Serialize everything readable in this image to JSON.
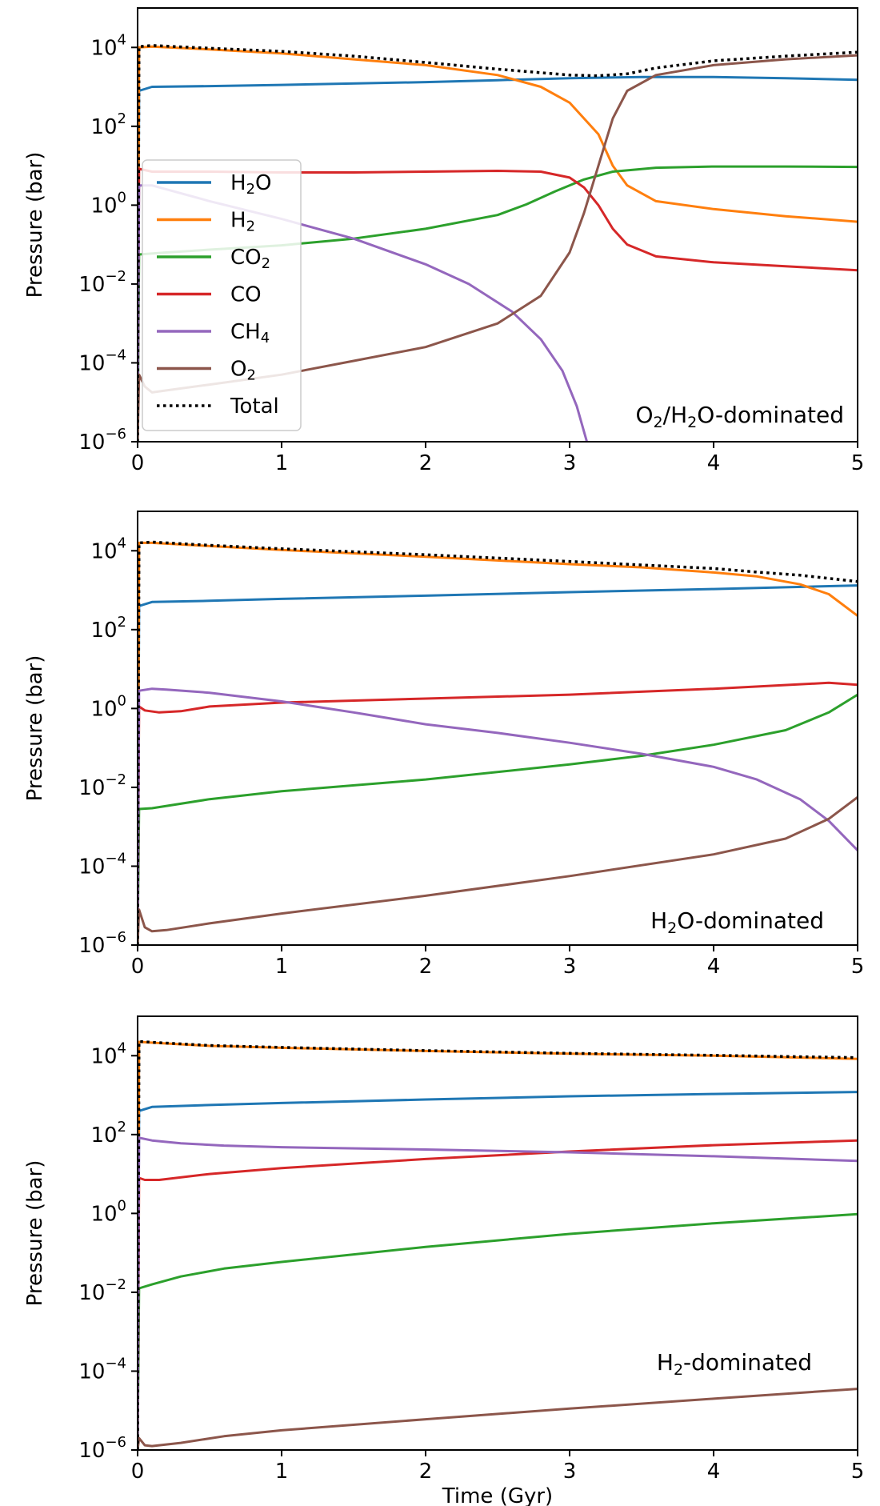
{
  "figure": {
    "xlabel": "Time (Gyr)"
  },
  "legend": {
    "entries": [
      {
        "key": "H2O",
        "label": "H",
        "sub": "2",
        "after": "O",
        "color": "#1f77b4",
        "dotted": false
      },
      {
        "key": "H2",
        "label": "H",
        "sub": "2",
        "after": "",
        "color": "#ff7f0e",
        "dotted": false
      },
      {
        "key": "CO2",
        "label": "CO",
        "sub": "2",
        "after": "",
        "color": "#2ca02c",
        "dotted": false
      },
      {
        "key": "CO",
        "label": "CO",
        "sub": "",
        "after": "",
        "color": "#d62728",
        "dotted": false
      },
      {
        "key": "CH4",
        "label": "CH",
        "sub": "4",
        "after": "",
        "color": "#9467bd",
        "dotted": false
      },
      {
        "key": "O2",
        "label": "O",
        "sub": "2",
        "after": "",
        "color": "#8c564b",
        "dotted": false
      },
      {
        "key": "Total",
        "label": "Total",
        "sub": "",
        "after": "",
        "color": "#000000",
        "dotted": true
      }
    ]
  },
  "chart_data": [
    {
      "type": "line",
      "panel_label": {
        "parts": [
          [
            "O",
            false
          ],
          [
            "2",
            true
          ],
          [
            "/H",
            false
          ],
          [
            "2",
            true
          ],
          [
            "O-dominated",
            false
          ]
        ]
      },
      "xlabel": "",
      "ylabel": "Pressure (bar)",
      "xlim": [
        0,
        5
      ],
      "ylim_log10": [
        -6,
        5
      ],
      "yscale": "log",
      "xticks": [
        0,
        1,
        2,
        3,
        4,
        5
      ],
      "yticks_log10": [
        -6,
        -4,
        -2,
        0,
        2,
        4
      ],
      "series": [
        {
          "name": "H2O",
          "color": "#1f77b4",
          "x": [
            0.01,
            0.1,
            0.5,
            1,
            2,
            2.5,
            3,
            3.5,
            4,
            4.5,
            5
          ],
          "log10_y": [
            2.9,
            3.0,
            3.02,
            3.05,
            3.12,
            3.17,
            3.22,
            3.25,
            3.25,
            3.22,
            3.18
          ]
        },
        {
          "name": "H2",
          "color": "#ff7f0e",
          "x": [
            0.01,
            0.1,
            0.5,
            1,
            1.5,
            2,
            2.5,
            2.8,
            3.0,
            3.2,
            3.3,
            3.4,
            3.6,
            4,
            4.5,
            5
          ],
          "log10_y": [
            4.0,
            4.02,
            3.95,
            3.85,
            3.7,
            3.55,
            3.3,
            3.0,
            2.6,
            1.8,
            1.0,
            0.5,
            0.1,
            -0.1,
            -0.28,
            -0.42
          ]
        },
        {
          "name": "CO2",
          "color": "#2ca02c",
          "x": [
            0.01,
            0.2,
            0.5,
            1,
            1.5,
            2,
            2.5,
            2.7,
            2.9,
            3.1,
            3.3,
            3.6,
            4,
            4.5,
            5
          ],
          "log10_y": [
            -1.25,
            -1.2,
            -1.13,
            -1.02,
            -0.85,
            -0.6,
            -0.25,
            0.02,
            0.35,
            0.65,
            0.85,
            0.95,
            0.98,
            0.98,
            0.97
          ]
        },
        {
          "name": "CO",
          "color": "#d62728",
          "x": [
            0.01,
            0.1,
            0.5,
            1,
            1.5,
            2,
            2.5,
            2.8,
            3.0,
            3.1,
            3.2,
            3.3,
            3.4,
            3.6,
            4,
            4.5,
            5
          ],
          "log10_y": [
            0.92,
            0.85,
            0.85,
            0.83,
            0.83,
            0.85,
            0.87,
            0.85,
            0.7,
            0.45,
            0.0,
            -0.6,
            -1.0,
            -1.3,
            -1.45,
            -1.55,
            -1.65
          ]
        },
        {
          "name": "CH4",
          "color": "#9467bd",
          "x": [
            0.01,
            0.1,
            0.5,
            1,
            1.5,
            2,
            2.3,
            2.6,
            2.8,
            2.95,
            3.05,
            3.12
          ],
          "log10_y": [
            0.5,
            0.5,
            0.1,
            -0.35,
            -0.85,
            -1.5,
            -2.0,
            -2.7,
            -3.4,
            -4.2,
            -5.1,
            -6.0
          ]
        },
        {
          "name": "O2",
          "color": "#8c564b",
          "x": [
            0.01,
            0.05,
            0.1,
            0.2,
            0.5,
            1,
            1.5,
            2,
            2.5,
            2.8,
            3.0,
            3.1,
            3.2,
            3.3,
            3.4,
            3.6,
            4,
            4.5,
            5
          ],
          "log10_y": [
            -4.3,
            -4.6,
            -4.75,
            -4.7,
            -4.55,
            -4.3,
            -3.95,
            -3.6,
            -3.0,
            -2.3,
            -1.2,
            -0.2,
            1.0,
            2.2,
            2.9,
            3.3,
            3.55,
            3.7,
            3.8
          ]
        },
        {
          "name": "Total",
          "color": "#000000",
          "dotted": true,
          "x": [
            0.01,
            0.1,
            0.5,
            1,
            1.5,
            2,
            2.5,
            3,
            3.2,
            3.4,
            3.6,
            4,
            4.5,
            5
          ],
          "log10_y": [
            4.02,
            4.05,
            3.98,
            3.9,
            3.78,
            3.62,
            3.45,
            3.3,
            3.28,
            3.33,
            3.48,
            3.66,
            3.78,
            3.88
          ]
        }
      ]
    },
    {
      "type": "line",
      "panel_label": {
        "parts": [
          [
            "H",
            false
          ],
          [
            "2",
            true
          ],
          [
            "O-dominated",
            false
          ]
        ]
      },
      "xlabel": "",
      "ylabel": "Pressure (bar)",
      "xlim": [
        0,
        5
      ],
      "ylim_log10": [
        -6,
        5
      ],
      "yscale": "log",
      "xticks": [
        0,
        1,
        2,
        3,
        4,
        5
      ],
      "yticks_log10": [
        -6,
        -4,
        -2,
        0,
        2,
        4
      ],
      "series": [
        {
          "name": "H2O",
          "color": "#1f77b4",
          "x": [
            0.01,
            0.1,
            0.5,
            1,
            2,
            3,
            4,
            5
          ],
          "log10_y": [
            2.6,
            2.7,
            2.73,
            2.78,
            2.86,
            2.95,
            3.03,
            3.12
          ]
        },
        {
          "name": "H2",
          "color": "#ff7f0e",
          "x": [
            0.01,
            0.1,
            0.5,
            1,
            2,
            3,
            3.5,
            4,
            4.3,
            4.6,
            4.8,
            5
          ],
          "log10_y": [
            4.2,
            4.2,
            4.12,
            4.02,
            3.85,
            3.66,
            3.58,
            3.45,
            3.35,
            3.15,
            2.9,
            2.35
          ]
        },
        {
          "name": "CO2",
          "color": "#2ca02c",
          "x": [
            0.01,
            0.1,
            0.5,
            1,
            2,
            3,
            3.5,
            4,
            4.5,
            4.8,
            5
          ],
          "log10_y": [
            -2.55,
            -2.53,
            -2.3,
            -2.1,
            -1.8,
            -1.42,
            -1.2,
            -0.92,
            -0.55,
            -0.1,
            0.35
          ]
        },
        {
          "name": "CO",
          "color": "#d62728",
          "x": [
            0.01,
            0.05,
            0.15,
            0.3,
            0.5,
            1,
            2,
            3,
            4,
            4.8,
            5
          ],
          "log10_y": [
            0.05,
            -0.05,
            -0.1,
            -0.07,
            0.05,
            0.15,
            0.25,
            0.35,
            0.5,
            0.65,
            0.6
          ]
        },
        {
          "name": "CH4",
          "color": "#9467bd",
          "x": [
            0.01,
            0.1,
            0.2,
            0.5,
            1,
            1.5,
            2,
            2.5,
            3,
            3.5,
            4,
            4.3,
            4.6,
            4.8,
            5
          ],
          "log10_y": [
            0.45,
            0.5,
            0.48,
            0.4,
            0.18,
            -0.1,
            -0.4,
            -0.62,
            -0.87,
            -1.15,
            -1.48,
            -1.8,
            -2.3,
            -2.85,
            -3.6
          ]
        },
        {
          "name": "O2",
          "color": "#8c564b",
          "x": [
            0.01,
            0.05,
            0.1,
            0.2,
            0.5,
            1,
            2,
            3,
            4,
            4.5,
            4.8,
            5
          ],
          "log10_y": [
            -5.1,
            -5.55,
            -5.65,
            -5.62,
            -5.45,
            -5.2,
            -4.75,
            -4.25,
            -3.7,
            -3.3,
            -2.8,
            -2.25
          ]
        },
        {
          "name": "Total",
          "color": "#000000",
          "dotted": true,
          "x": [
            0.01,
            0.1,
            0.5,
            1,
            2,
            3,
            3.5,
            4,
            4.3,
            4.6,
            4.8,
            5
          ],
          "log10_y": [
            4.2,
            4.22,
            4.14,
            4.05,
            3.9,
            3.73,
            3.64,
            3.55,
            3.46,
            3.38,
            3.3,
            3.22
          ]
        }
      ]
    },
    {
      "type": "line",
      "panel_label": {
        "parts": [
          [
            "H",
            false
          ],
          [
            "2",
            true
          ],
          [
            "-dominated",
            false
          ]
        ]
      },
      "xlabel": "Time (Gyr)",
      "ylabel": "Pressure (bar)",
      "xlim": [
        0,
        5
      ],
      "ylim_log10": [
        -6,
        5
      ],
      "yscale": "log",
      "xticks": [
        0,
        1,
        2,
        3,
        4,
        5
      ],
      "yticks_log10": [
        -6,
        -4,
        -2,
        0,
        2,
        4
      ],
      "series": [
        {
          "name": "H2O",
          "color": "#1f77b4",
          "x": [
            0.01,
            0.1,
            0.5,
            1,
            2,
            3,
            4,
            5
          ],
          "log10_y": [
            2.6,
            2.7,
            2.75,
            2.8,
            2.89,
            2.97,
            3.03,
            3.08
          ]
        },
        {
          "name": "H2",
          "color": "#ff7f0e",
          "x": [
            0.01,
            0.1,
            0.5,
            1,
            2,
            3,
            4,
            5
          ],
          "log10_y": [
            4.35,
            4.33,
            4.25,
            4.2,
            4.12,
            4.05,
            4.0,
            3.92
          ]
        },
        {
          "name": "CO2",
          "color": "#2ca02c",
          "x": [
            0.01,
            0.1,
            0.3,
            0.6,
            1,
            2,
            3,
            4,
            5
          ],
          "log10_y": [
            -1.9,
            -1.8,
            -1.6,
            -1.4,
            -1.23,
            -0.85,
            -0.52,
            -0.25,
            -0.02
          ]
        },
        {
          "name": "CO",
          "color": "#d62728",
          "x": [
            0.01,
            0.05,
            0.15,
            0.5,
            1,
            2,
            3,
            4,
            5
          ],
          "log10_y": [
            0.9,
            0.85,
            0.85,
            1.0,
            1.15,
            1.38,
            1.57,
            1.73,
            1.85
          ]
        },
        {
          "name": "CH4",
          "color": "#9467bd",
          "x": [
            0.01,
            0.1,
            0.3,
            0.6,
            1,
            2,
            3,
            4,
            5
          ],
          "log10_y": [
            1.92,
            1.85,
            1.78,
            1.72,
            1.68,
            1.62,
            1.55,
            1.45,
            1.33
          ]
        },
        {
          "name": "O2",
          "color": "#8c564b",
          "x": [
            0.01,
            0.05,
            0.1,
            0.3,
            0.6,
            1,
            2,
            3,
            4,
            5
          ],
          "log10_y": [
            -5.7,
            -5.88,
            -5.9,
            -5.82,
            -5.65,
            -5.5,
            -5.22,
            -4.95,
            -4.7,
            -4.45
          ]
        },
        {
          "name": "Total",
          "color": "#000000",
          "dotted": true,
          "x": [
            0.01,
            0.1,
            0.5,
            1,
            2,
            3,
            4,
            5
          ],
          "log10_y": [
            4.36,
            4.34,
            4.26,
            4.21,
            4.13,
            4.06,
            4.01,
            3.95
          ]
        }
      ]
    }
  ]
}
